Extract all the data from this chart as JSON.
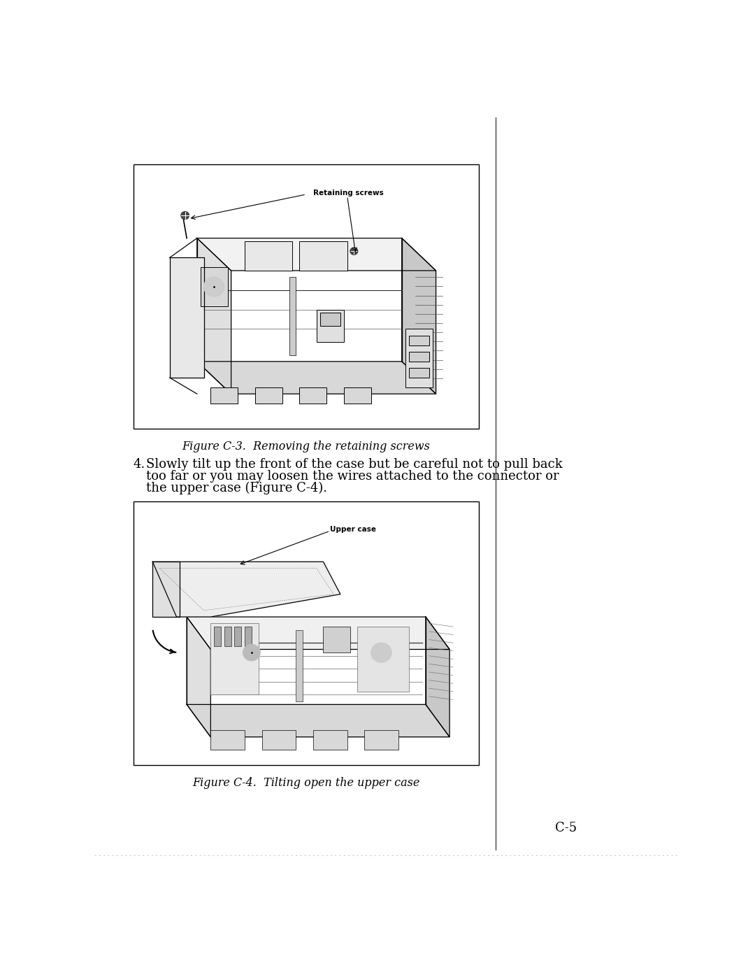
{
  "page_bg": "#ffffff",
  "page_width": 10.8,
  "page_height": 13.97,
  "dpi": 100,
  "fig1_caption": "Figure C-3.  Removing the retaining screws",
  "fig2_caption": "Figure C-4.  Tilting open the upper case",
  "step_number": "4.",
  "step_text_line1": "Slowly tilt up the front of the case but be careful not to pull back",
  "step_text_line2": "too far or you may loosen the wires attached to the connector or",
  "step_text_line3": "the upper case (Figure C-4).",
  "page_number": "C-5",
  "text_color": "#000000",
  "font_size_body": 13.0,
  "font_size_caption": 11.5,
  "font_size_page": 13
}
